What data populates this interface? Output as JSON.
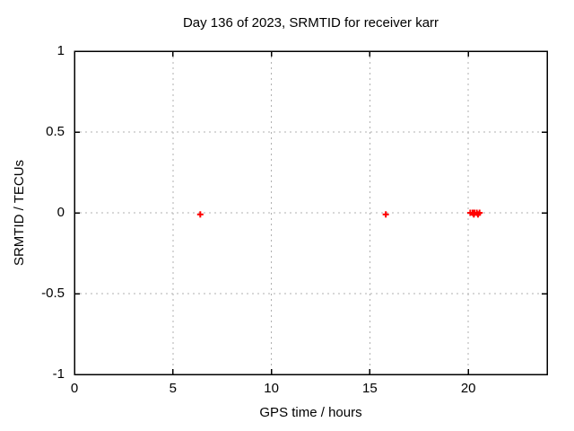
{
  "chart_data": {
    "type": "scatter",
    "title": "Day 136 of 2023, SRMTID for receiver karr",
    "xlabel": "GPS time / hours",
    "ylabel": "SRMTID / TECUs",
    "xlim": [
      0,
      24
    ],
    "ylim": [
      -1,
      1
    ],
    "xticks": [
      [
        0,
        "0"
      ],
      [
        5,
        "5"
      ],
      [
        10,
        "10"
      ],
      [
        15,
        "15"
      ],
      [
        20,
        "20"
      ]
    ],
    "yticks": [
      [
        1,
        "1"
      ],
      [
        0.5,
        "0.5"
      ],
      [
        0,
        "0"
      ],
      [
        -0.5,
        "-0.5"
      ],
      [
        -1,
        "-1"
      ]
    ],
    "grid": true,
    "legend": "none",
    "marker": "plus",
    "colors": {
      "marker": "#ff0000",
      "grid": "#b0b0b0",
      "border": "#000000",
      "background": "#ffffff",
      "text": "#000000"
    },
    "series": [
      {
        "name": "SRMTID",
        "points": [
          [
            6.39,
            -0.01
          ],
          [
            15.81,
            -0.01
          ],
          [
            20.1,
            0.0
          ],
          [
            20.22,
            0.0
          ],
          [
            20.28,
            -0.01
          ],
          [
            20.31,
            0.0
          ],
          [
            20.43,
            0.0
          ],
          [
            20.49,
            -0.01
          ],
          [
            20.57,
            0.0
          ]
        ]
      }
    ]
  }
}
